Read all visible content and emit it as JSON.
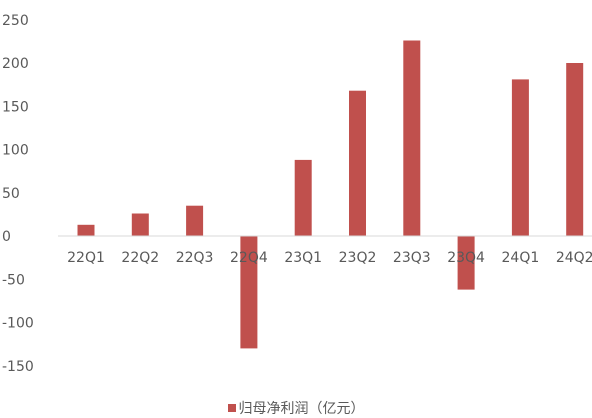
{
  "chart_data": {
    "type": "bar",
    "categories": [
      "22Q1",
      "22Q2",
      "22Q3",
      "22Q4",
      "23Q1",
      "23Q2",
      "23Q3",
      "23Q4",
      "24Q1",
      "24Q2"
    ],
    "series": [
      {
        "name": "归母净利润（亿元）",
        "color": "#c0504d",
        "values": [
          13,
          26,
          35,
          -130,
          88,
          168,
          226,
          -62,
          181,
          200
        ]
      }
    ],
    "yticks": [
      250,
      200,
      150,
      100,
      50,
      0,
      -50,
      -100,
      -150
    ],
    "ylim": [
      -165,
      255
    ],
    "grid": false,
    "legend": "bottom"
  }
}
